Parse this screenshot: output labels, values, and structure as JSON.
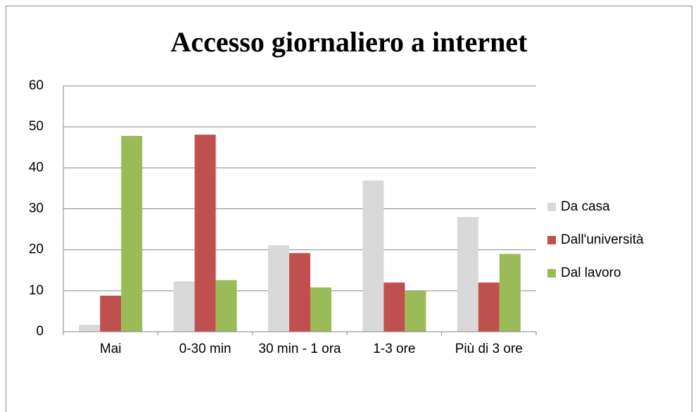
{
  "chart_data": {
    "type": "bar",
    "title": "Accesso giornaliero a internet",
    "categories": [
      "Mai",
      "0-30 min",
      "30 min - 1 ora",
      "1-3 ore",
      "Più di 3 ore"
    ],
    "series": [
      {
        "name": "Da casa",
        "color": "#d9d9d9",
        "values": [
          1.7,
          12.3,
          21.1,
          36.9,
          28
        ]
      },
      {
        "name": "Dall'università",
        "color": "#c0504d",
        "values": [
          8.8,
          48.1,
          19.2,
          12,
          12
        ]
      },
      {
        "name": "Dal lavoro",
        "color": "#9bbb59",
        "values": [
          47.8,
          12.6,
          10.8,
          9.9,
          19
        ]
      }
    ],
    "ylim": [
      0,
      60
    ],
    "yticks": [
      0,
      10,
      20,
      30,
      40,
      50,
      60
    ],
    "grid": true,
    "legend": "right"
  }
}
